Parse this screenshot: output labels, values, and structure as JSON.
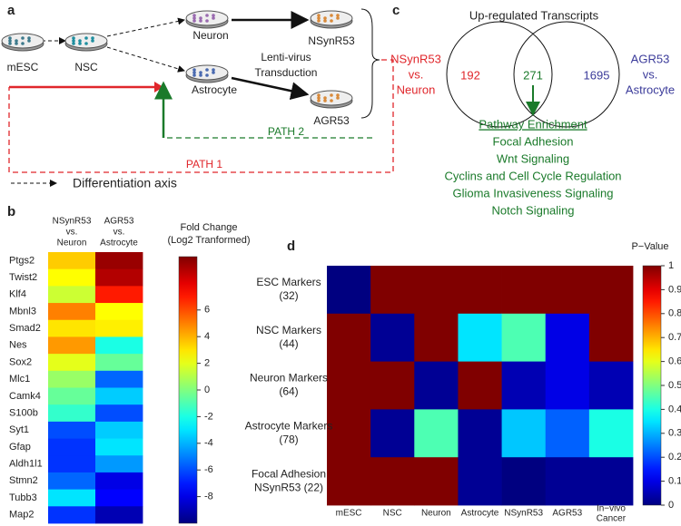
{
  "panel_a": {
    "letter": "a",
    "nodes": [
      "mESC",
      "NSC",
      "Neuron",
      "Astrocyte",
      "NSynR53",
      "AGR53"
    ],
    "transduction": [
      "Lenti-virus",
      "Transduction"
    ],
    "path2": "PATH 2",
    "path1": "PATH 1",
    "legend": "Differentiation axis"
  },
  "panel_b": {
    "letter": "b",
    "columns": [
      [
        "NSynR53",
        "vs.",
        "Neuron"
      ],
      [
        "AGR53",
        "vs.",
        "Astrocyte"
      ]
    ],
    "colorbar_title": [
      "Fold Change",
      "(Log2 Tranformed)"
    ],
    "rows": [
      "Ptgs2",
      "Twist2",
      "Klf4",
      "Mbnl3",
      "Smad2",
      "Nes",
      "Sox2",
      "Mlc1",
      "Camk4",
      "S100b",
      "Syt1",
      "Gfap",
      "Aldh1l1",
      "Stmn2",
      "Tubb3",
      "Map2"
    ],
    "values": [
      [
        3.5,
        9.5
      ],
      [
        2.5,
        9
      ],
      [
        1.5,
        7
      ],
      [
        5,
        2.5
      ],
      [
        3,
        2.8
      ],
      [
        4.5,
        -2
      ],
      [
        2,
        -0.5
      ],
      [
        0.5,
        -5.5
      ],
      [
        -0.5,
        -3.5
      ],
      [
        -1.5,
        -6
      ],
      [
        -6,
        -3.5
      ],
      [
        -6.5,
        -3
      ],
      [
        -6.5,
        -4.5
      ],
      [
        -5.5,
        -8
      ],
      [
        -3,
        -7.5
      ],
      [
        -6.5,
        -9
      ]
    ],
    "clim": [
      -10,
      10
    ],
    "ticks": [
      6,
      4,
      2,
      0,
      -2,
      -4,
      -6,
      -8
    ]
  },
  "panel_c": {
    "letter": "c",
    "title": "Up-regulated Transcripts",
    "left_label": [
      "NSynR53",
      "vs.",
      "Neuron"
    ],
    "right_label": [
      "AGR53",
      "vs.",
      "Astrocyte"
    ],
    "left_count": "192",
    "overlap_count": "271",
    "right_count": "1695",
    "enrichment_title": "Pathway Enrichment",
    "pathways": [
      "Focal Adhesion",
      "Wnt Signaling",
      "Cyclins and Cell Cycle Regulation",
      "Glioma Invasiveness Signaling",
      "Notch Signaling"
    ]
  },
  "panel_d": {
    "letter": "d",
    "colorbar_title": "P−Value",
    "rows": [
      [
        "ESC Markers",
        "(32)"
      ],
      [
        "NSC Markers",
        "(44)"
      ],
      [
        "Neuron Markers",
        "(64)"
      ],
      [
        "Astrocyte Markers",
        "(78)"
      ],
      [
        "Focal Adhesion",
        "NSynR53 (22)"
      ]
    ],
    "columns": [
      [
        "mESC"
      ],
      [
        "NSC"
      ],
      [
        "Neuron"
      ],
      [
        "Astrocyte"
      ],
      [
        "NSynR53"
      ],
      [
        "AGR53"
      ],
      [
        "In−vivo",
        "Cancer"
      ]
    ],
    "values": [
      [
        0,
        1,
        1,
        1,
        1,
        1,
        1
      ],
      [
        1,
        0.02,
        1,
        0.35,
        0.45,
        0.1,
        1
      ],
      [
        1,
        1,
        0.02,
        1,
        0.05,
        0.1,
        0.05
      ],
      [
        1,
        0.02,
        0.45,
        0.02,
        0.32,
        0.22,
        0.4
      ],
      [
        1,
        1,
        1,
        0.02,
        0,
        0.02,
        0.02
      ]
    ],
    "clim": [
      0,
      1
    ],
    "ticks": [
      0,
      0.1,
      0.2,
      0.3,
      0.4,
      0.5,
      0.6,
      0.7,
      0.8,
      0.9,
      1
    ]
  }
}
